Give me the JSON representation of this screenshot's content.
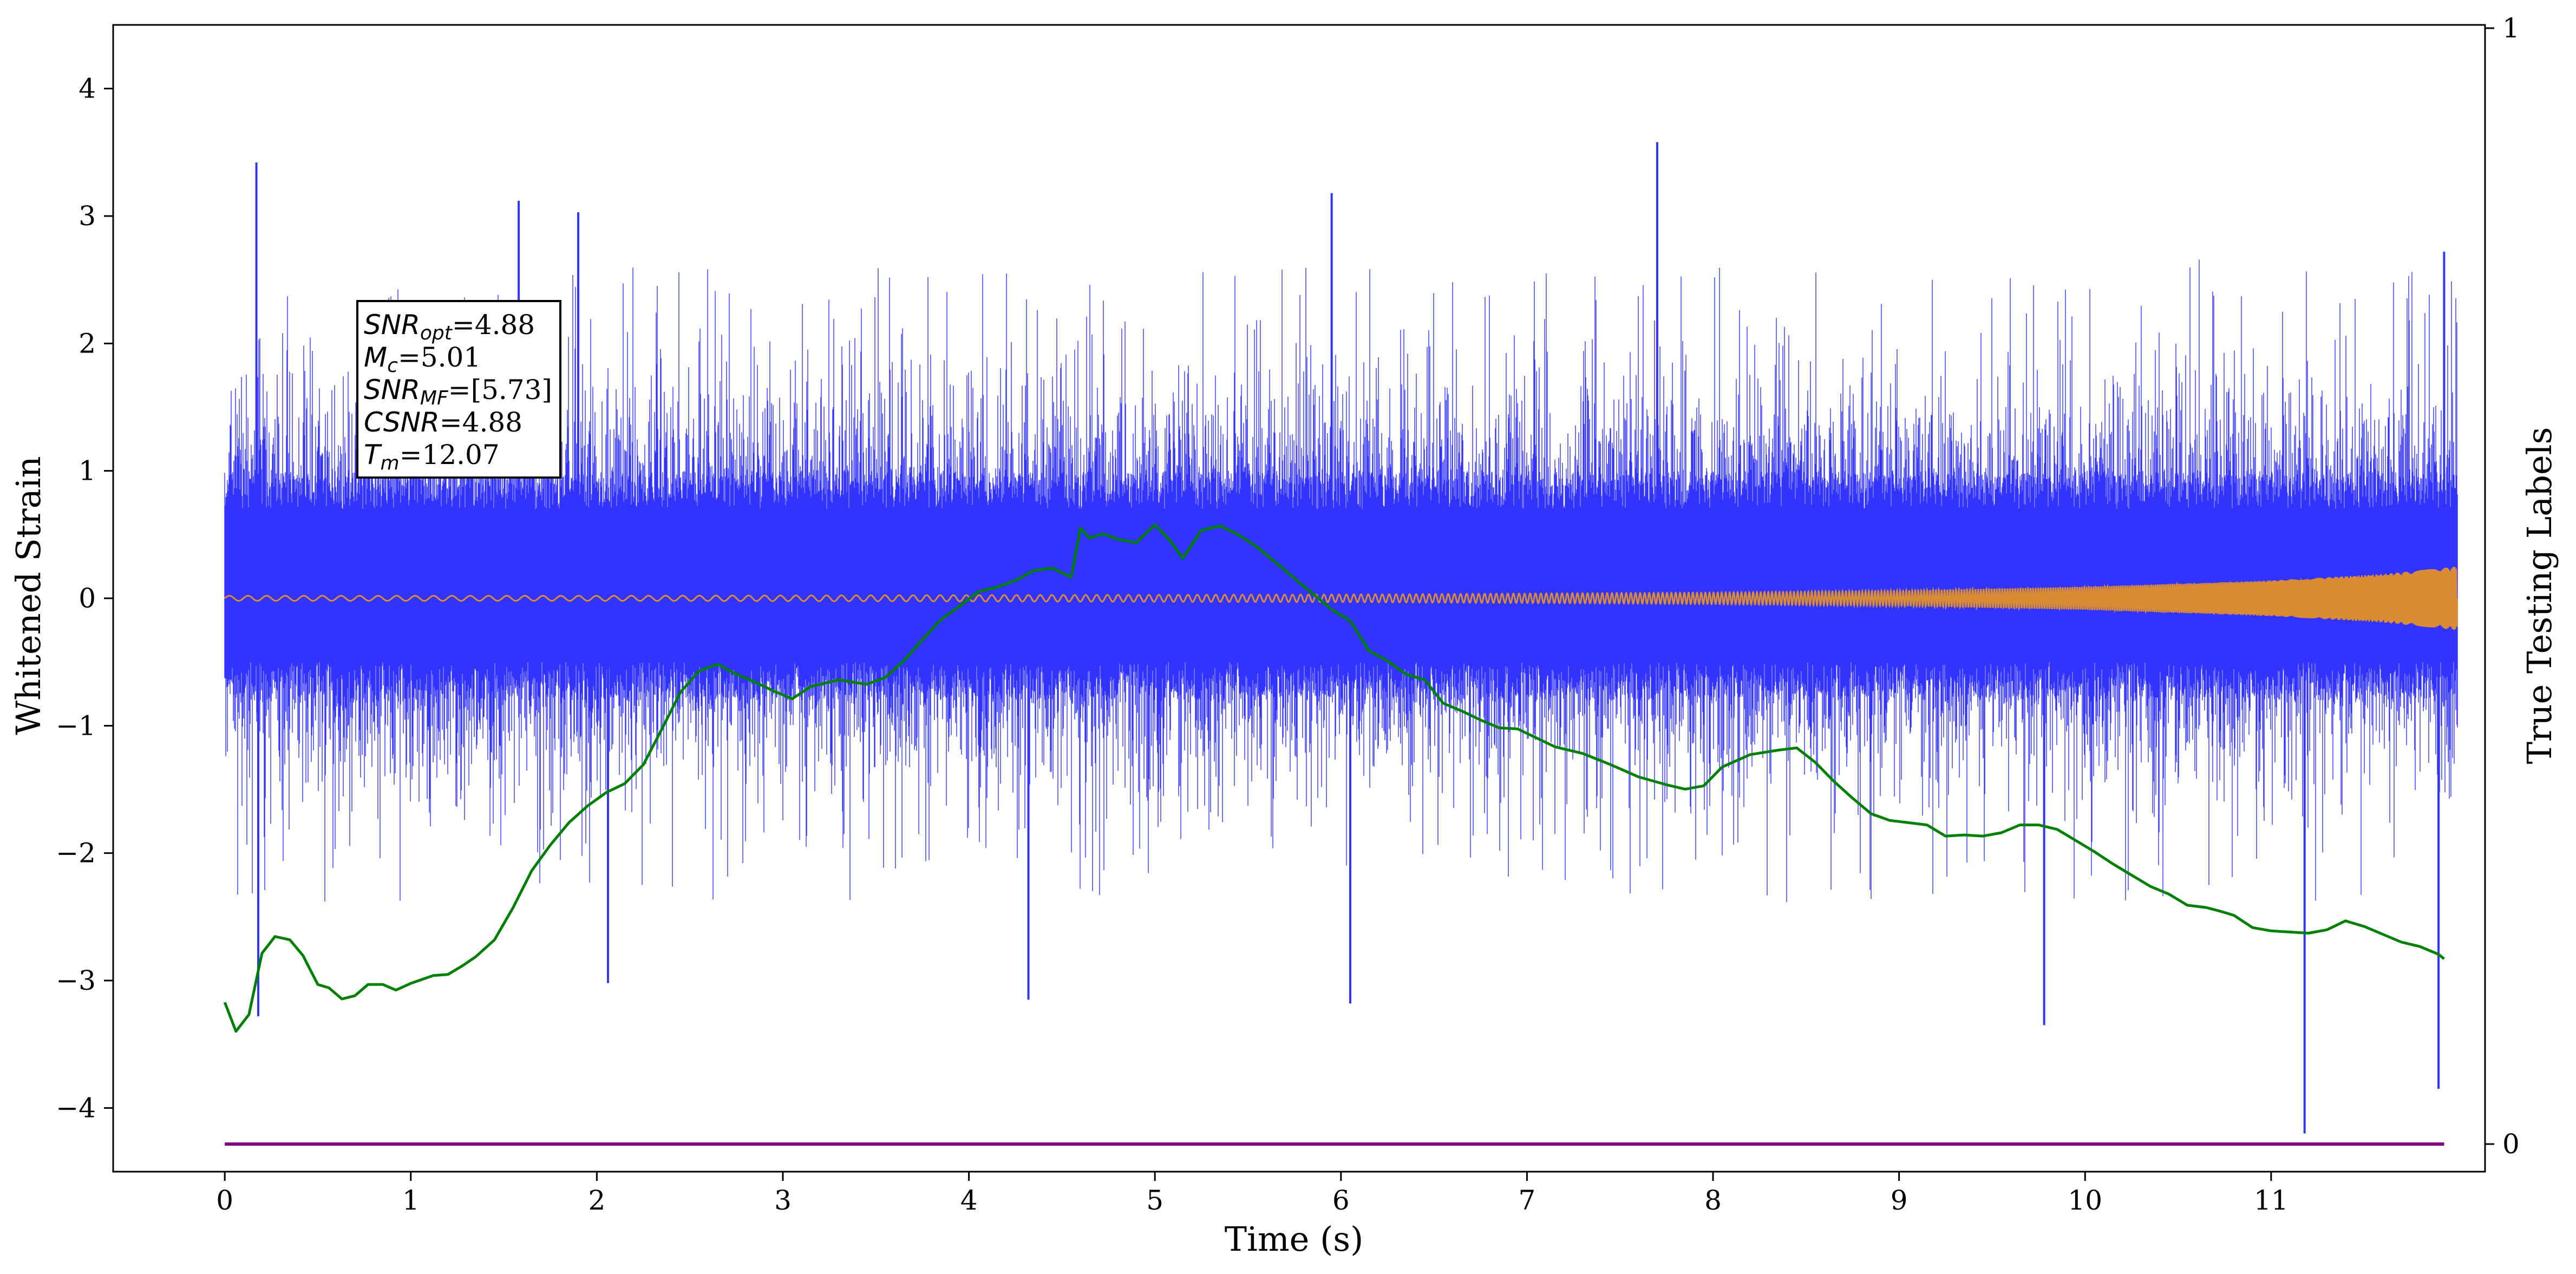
{
  "chart_data": {
    "type": "line",
    "xlabel": "Time (s)",
    "ylabel_left": "Whitened Strain",
    "ylabel_right": "True Testing Labels",
    "xlim": [
      -0.6,
      12.15
    ],
    "ylim_left": [
      -4.5,
      4.5
    ],
    "ylim_right": [
      0,
      1
    ],
    "x_ticks": [
      0,
      1,
      2,
      3,
      4,
      5,
      6,
      7,
      8,
      9,
      10,
      11
    ],
    "y_ticks_left": [
      -4,
      -3,
      -2,
      -1,
      0,
      1,
      2,
      3,
      4
    ],
    "y_ticks_right": [
      0,
      1
    ],
    "grid": false,
    "annotation": {
      "lines": [
        {
          "sym": "SNR",
          "sub": "opt",
          "value": "=4.88"
        },
        {
          "sym": "M",
          "sub": "c",
          "value": "=5.01"
        },
        {
          "sym": "SNR",
          "sub": "MF",
          "value": "=[5.73]"
        },
        {
          "sym": "CSNR",
          "sub": "",
          "value": "=4.88"
        },
        {
          "sym": "T",
          "sub": "m",
          "value": "=12.07"
        }
      ]
    },
    "series": [
      {
        "key": "strain",
        "color": "#3333ff",
        "axis": "left",
        "description_samples": {
          "x_range": [
            0,
            12.0
          ],
          "core_band": [
            -0.8,
            1.0
          ],
          "peak_max": 3.58,
          "peak_min": -4.2
        },
        "extremes": [
          {
            "x": 0.17,
            "y": 3.42
          },
          {
            "x": 0.18,
            "y": -3.28
          },
          {
            "x": 1.58,
            "y": 3.12
          },
          {
            "x": 1.9,
            "y": 3.03
          },
          {
            "x": 2.06,
            "y": -3.02
          },
          {
            "x": 4.32,
            "y": -3.15
          },
          {
            "x": 5.95,
            "y": 3.18
          },
          {
            "x": 6.05,
            "y": -3.18
          },
          {
            "x": 7.7,
            "y": 3.58
          },
          {
            "x": 9.78,
            "y": -3.35
          },
          {
            "x": 11.18,
            "y": -4.2
          },
          {
            "x": 11.9,
            "y": -3.85
          },
          {
            "x": 11.93,
            "y": 2.72
          }
        ]
      },
      {
        "key": "template",
        "color": "#d98c33",
        "axis": "left",
        "envelope": [
          [
            0,
            0.02
          ],
          [
            2,
            0.02
          ],
          [
            4,
            0.025
          ],
          [
            6,
            0.03
          ],
          [
            8,
            0.045
          ],
          [
            9,
            0.06
          ],
          [
            10,
            0.09
          ],
          [
            11,
            0.14
          ],
          [
            11.6,
            0.19
          ],
          [
            12.0,
            0.25
          ]
        ]
      },
      {
        "key": "prediction",
        "color": "#008000",
        "axis": "right",
        "x": [
          0,
          0.06,
          0.13,
          0.2,
          0.27,
          0.35,
          0.42,
          0.5,
          0.56,
          0.63,
          0.7,
          0.77,
          0.85,
          0.92,
          1.0,
          1.12,
          1.2,
          1.28,
          1.35,
          1.45,
          1.55,
          1.65,
          1.75,
          1.85,
          1.95,
          2.05,
          2.15,
          2.25,
          2.35,
          2.45,
          2.55,
          2.65,
          2.75,
          2.85,
          2.95,
          3.05,
          3.15,
          3.3,
          3.45,
          3.55,
          3.65,
          3.75,
          3.85,
          3.95,
          4.05,
          4.15,
          4.25,
          4.35,
          4.45,
          4.55,
          4.6,
          4.65,
          4.72,
          4.8,
          4.9,
          5.0,
          5.08,
          5.15,
          5.25,
          5.35,
          5.45,
          5.55,
          5.65,
          5.75,
          5.85,
          5.95,
          6.05,
          6.15,
          6.25,
          6.35,
          6.45,
          6.55,
          6.65,
          6.75,
          6.85,
          6.95,
          7.05,
          7.15,
          7.3,
          7.45,
          7.6,
          7.75,
          7.85,
          7.95,
          8.05,
          8.2,
          8.35,
          8.45,
          8.55,
          8.65,
          8.75,
          8.85,
          8.95,
          9.05,
          9.15,
          9.25,
          9.35,
          9.45,
          9.55,
          9.65,
          9.75,
          9.85,
          9.95,
          10.05,
          10.15,
          10.25,
          10.35,
          10.45,
          10.55,
          10.65,
          10.72,
          10.8,
          10.9,
          11.0,
          11.1,
          11.2,
          11.3,
          11.4,
          11.5,
          11.6,
          11.7,
          11.8,
          11.9,
          11.93
        ],
        "values": [
          0.127,
          0.101,
          0.116,
          0.171,
          0.186,
          0.183,
          0.169,
          0.143,
          0.14,
          0.13,
          0.133,
          0.143,
          0.143,
          0.138,
          0.144,
          0.151,
          0.152,
          0.16,
          0.168,
          0.183,
          0.212,
          0.245,
          0.268,
          0.288,
          0.303,
          0.315,
          0.323,
          0.34,
          0.372,
          0.405,
          0.424,
          0.43,
          0.421,
          0.414,
          0.406,
          0.399,
          0.41,
          0.416,
          0.412,
          0.418,
          0.433,
          0.452,
          0.47,
          0.482,
          0.495,
          0.499,
          0.505,
          0.514,
          0.516,
          0.508,
          0.552,
          0.543,
          0.547,
          0.542,
          0.539,
          0.555,
          0.541,
          0.525,
          0.55,
          0.554,
          0.546,
          0.535,
          0.521,
          0.507,
          0.493,
          0.479,
          0.469,
          0.442,
          0.433,
          0.421,
          0.416,
          0.395,
          0.388,
          0.38,
          0.373,
          0.372,
          0.364,
          0.356,
          0.35,
          0.34,
          0.329,
          0.322,
          0.318,
          0.321,
          0.338,
          0.349,
          0.353,
          0.355,
          0.342,
          0.325,
          0.31,
          0.296,
          0.29,
          0.288,
          0.286,
          0.276,
          0.277,
          0.276,
          0.279,
          0.286,
          0.286,
          0.282,
          0.272,
          0.262,
          0.251,
          0.241,
          0.231,
          0.224,
          0.214,
          0.212,
          0.209,
          0.205,
          0.194,
          0.191,
          0.19,
          0.189,
          0.192,
          0.2,
          0.195,
          0.188,
          0.181,
          0.177,
          0.17,
          0.166
        ]
      },
      {
        "key": "labels",
        "color": "#800080",
        "axis": "right",
        "x": [
          0,
          11.93
        ],
        "values": [
          0,
          0
        ]
      }
    ]
  }
}
